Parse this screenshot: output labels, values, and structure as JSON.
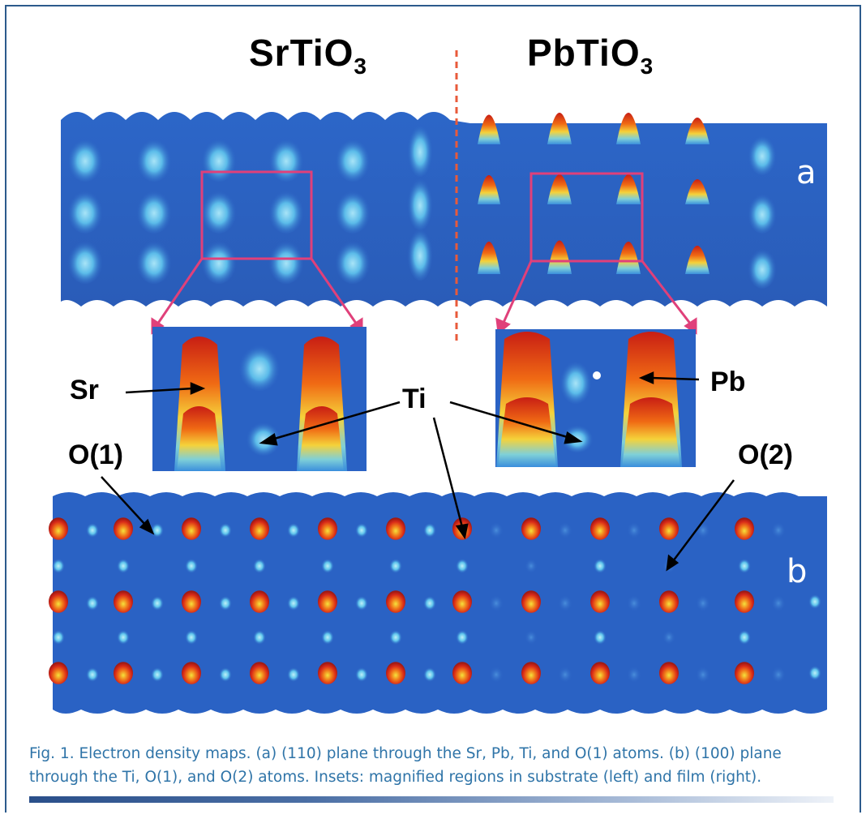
{
  "figure": {
    "headers": {
      "left": "SrTiO",
      "left_sub": "3",
      "right": "PbTiO",
      "right_sub": "3"
    },
    "panel_labels": {
      "a": "a",
      "b": "b"
    },
    "atom_labels": {
      "sr": "Sr",
      "ti": "Ti",
      "pb": "Pb",
      "o1": "O(1)",
      "o2": "O(2)"
    },
    "caption": "Fig. 1. Electron density maps. (a) (110) plane through the Sr, Pb, Ti, and O(1) atoms. (b) (100) plane through the Ti, O(1), and O(2) atoms. Insets: magnified regions in substrate (left) and film (right).",
    "colors": {
      "map_background": "#2a62c4",
      "density_low": "#4fb4e8",
      "density_high": "#d8281c",
      "inset_box": "#e0407a",
      "divider": "#e85a3a",
      "caption_text": "#2f74a8",
      "frame": "#2c5a8c"
    }
  }
}
